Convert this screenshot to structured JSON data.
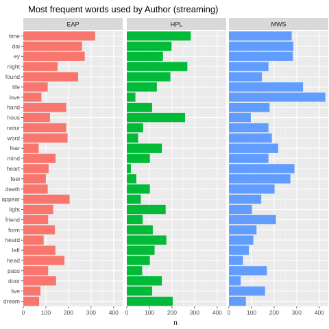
{
  "chart_data": {
    "type": "bar",
    "orientation": "horizontal",
    "title": "Most frequent words used by Author (streaming)",
    "xlabel": "n",
    "ylabel": "",
    "xlim": [
      0,
      440
    ],
    "x_ticks": [
      0,
      100,
      200,
      300,
      400
    ],
    "grid": true,
    "legend": "none",
    "categories": [
      "time",
      "dai",
      "ey",
      "night",
      "found",
      "life",
      "love",
      "hand",
      "hous",
      "natur",
      "word",
      "fear",
      "mind",
      "heart",
      "feel",
      "death",
      "appear",
      "light",
      "friend",
      "form",
      "heard",
      "left",
      "head",
      "pass",
      "door",
      "live",
      "dream"
    ],
    "series": [
      {
        "name": "EAP",
        "color": "#f8766d",
        "values": [
          318,
          260,
          272,
          152,
          243,
          108,
          80,
          190,
          118,
          190,
          196,
          68,
          143,
          112,
          100,
          108,
          205,
          132,
          110,
          140,
          90,
          142,
          182,
          110,
          145,
          76,
          70
        ]
      },
      {
        "name": "HPL",
        "color": "#00ba38",
        "values": [
          283,
          198,
          160,
          268,
          193,
          133,
          38,
          112,
          258,
          72,
          50,
          155,
          102,
          18,
          42,
          102,
          62,
          172,
          70,
          115,
          175,
          123,
          102,
          68,
          155,
          112,
          203
        ]
      },
      {
        "name": "MWS",
        "color": "#619cff",
        "values": [
          278,
          285,
          283,
          175,
          146,
          328,
          427,
          180,
          97,
          175,
          190,
          218,
          175,
          290,
          272,
          202,
          143,
          102,
          208,
          122,
          108,
          88,
          62,
          168,
          52,
          160,
          75
        ]
      }
    ]
  }
}
